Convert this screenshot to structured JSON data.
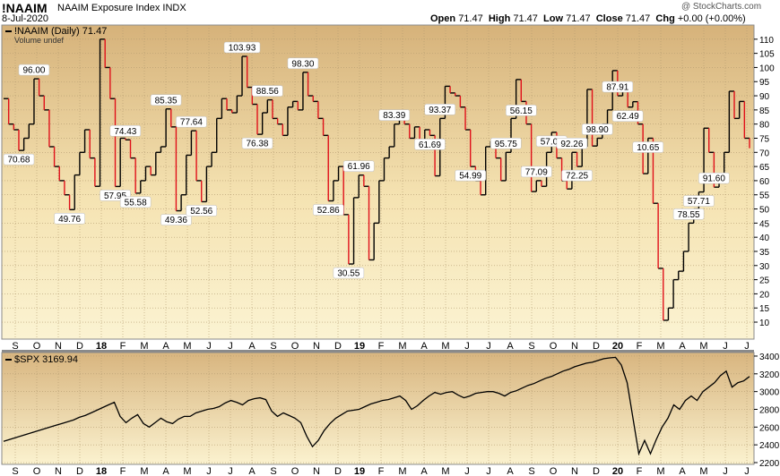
{
  "header": {
    "symbol": "!NAAIM",
    "name": "NAAIM Exposure Index  INDX",
    "watermark": "@ StockCharts.com",
    "date": "8-Jul-2020",
    "quote_label_open": "Open",
    "quote_open": "71.47",
    "quote_label_high": "High",
    "quote_high": "71.47",
    "quote_label_low": "Low",
    "quote_low": "71.47",
    "quote_label_close": "Close",
    "quote_close": "71.47",
    "quote_label_chg": "Chg",
    "quote_chg": "+0.00 (+0.00%)"
  },
  "colors": {
    "panel_top": "#d6b27a",
    "panel_mid": "#fbf2cf",
    "up_line": "#000000",
    "down_line": "#e0101a",
    "spx_line": "#000000"
  },
  "chart_data": [
    {
      "type": "line",
      "panel": "main",
      "legend_label": "!NAAIM (Daily) 71.47",
      "legend_sub": "Volume undef",
      "ylim": [
        4,
        115
      ],
      "y_ticks": [
        10,
        15,
        20,
        25,
        30,
        35,
        40,
        45,
        50,
        55,
        60,
        65,
        70,
        75,
        80,
        85,
        90,
        95,
        100,
        105,
        110
      ],
      "x_month_labels": [
        "S",
        "O",
        "N",
        "D",
        "18",
        "F",
        "M",
        "A",
        "M",
        "J",
        "J",
        "A",
        "S",
        "O",
        "N",
        "D",
        "19",
        "F",
        "M",
        "A",
        "M",
        "J",
        "J",
        "A",
        "S",
        "O",
        "N",
        "D",
        "20",
        "F",
        "M",
        "A",
        "M",
        "J",
        "J"
      ],
      "grid": true,
      "style": "step, up-moves black, down-moves red",
      "values": [
        89,
        80,
        78,
        70.68,
        75,
        80,
        96,
        90,
        85,
        72,
        65,
        60,
        55,
        49.76,
        62,
        70,
        78,
        68,
        58,
        110,
        100,
        89,
        57.95,
        75,
        74.43,
        68,
        55.58,
        60,
        65,
        62,
        70,
        72,
        85.35,
        79,
        49.36,
        55,
        69,
        77.64,
        60,
        52.56,
        65,
        70,
        82,
        89,
        85,
        84,
        90,
        103.93,
        93,
        87,
        76.38,
        84,
        88.56,
        82,
        80,
        76,
        86,
        88,
        85,
        98.3,
        90,
        88,
        82,
        76,
        52.86,
        60,
        65,
        48,
        30.55,
        54,
        61.96,
        58,
        32,
        45,
        60,
        68,
        72,
        80,
        83.39,
        80,
        75,
        79,
        72,
        78,
        76,
        61.69,
        82,
        93.37,
        91,
        90,
        86,
        78,
        65,
        60,
        54.99,
        72,
        74,
        68,
        60,
        70,
        82,
        95.75,
        88,
        80,
        56.15,
        60,
        58,
        70,
        77.09,
        68,
        60,
        57.08,
        70,
        65,
        72,
        92.26,
        72.25,
        75,
        80,
        85,
        98.9,
        90,
        93,
        86,
        87.91,
        80,
        62.49,
        75,
        52,
        29,
        10.65,
        15,
        25,
        28,
        35,
        45,
        50,
        56,
        78.55,
        70,
        57.71,
        60,
        70,
        91.6,
        82,
        88,
        75,
        71.47
      ],
      "annotations": [
        {
          "label": "96.00",
          "i": 6,
          "dir": "up"
        },
        {
          "label": "70.68",
          "i": 3,
          "dir": "down"
        },
        {
          "label": "49.76",
          "i": 13,
          "dir": "down"
        },
        {
          "label": "57.95",
          "i": 22,
          "dir": "down"
        },
        {
          "label": "74.43",
          "i": 24,
          "dir": "up"
        },
        {
          "label": "55.58",
          "i": 26,
          "dir": "down"
        },
        {
          "label": "85.35",
          "i": 32,
          "dir": "up"
        },
        {
          "label": "49.36",
          "i": 34,
          "dir": "down"
        },
        {
          "label": "77.64",
          "i": 37,
          "dir": "up"
        },
        {
          "label": "52.56",
          "i": 39,
          "dir": "down"
        },
        {
          "label": "103.93",
          "i": 47,
          "dir": "up"
        },
        {
          "label": "76.38",
          "i": 50,
          "dir": "down"
        },
        {
          "label": "88.56",
          "i": 52,
          "dir": "up"
        },
        {
          "label": "98.30",
          "i": 59,
          "dir": "up"
        },
        {
          "label": "52.86",
          "i": 64,
          "dir": "down"
        },
        {
          "label": "30.55",
          "i": 68,
          "dir": "down"
        },
        {
          "label": "61.96",
          "i": 70,
          "dir": "up"
        },
        {
          "label": "83.39",
          "i": 77,
          "dir": "up"
        },
        {
          "label": "61.69",
          "i": 84,
          "dir": "down"
        },
        {
          "label": "93.37",
          "i": 86,
          "dir": "up"
        },
        {
          "label": "54.99",
          "i": 92,
          "dir": "down"
        },
        {
          "label": "95.75",
          "i": 99,
          "dir": "up"
        },
        {
          "label": "56.15",
          "i": 102,
          "dir": "down"
        },
        {
          "label": "77.09",
          "i": 105,
          "dir": "up"
        },
        {
          "label": "57.08",
          "i": 108,
          "dir": "down"
        },
        {
          "label": "92.26",
          "i": 112,
          "dir": "up"
        },
        {
          "label": "72.25",
          "i": 113,
          "dir": "down"
        },
        {
          "label": "98.90",
          "i": 117,
          "dir": "up"
        },
        {
          "label": "87.91",
          "i": 121,
          "dir": "up"
        },
        {
          "label": "62.49",
          "i": 123,
          "dir": "down"
        },
        {
          "label": "10.65",
          "i": 127,
          "dir": "down"
        },
        {
          "label": "78.55",
          "i": 135,
          "dir": "up"
        },
        {
          "label": "57.71",
          "i": 137,
          "dir": "down"
        },
        {
          "label": "91.60",
          "i": 140,
          "dir": "up"
        }
      ]
    },
    {
      "type": "line",
      "panel": "lower",
      "legend_label": "$SPX 3169.94",
      "ylim": [
        2180,
        3440
      ],
      "y_ticks": [
        2200,
        2400,
        2600,
        2800,
        3000,
        3200,
        3400
      ],
      "x_month_labels": [
        "S",
        "O",
        "N",
        "D",
        "18",
        "F",
        "M",
        "A",
        "M",
        "J",
        "J",
        "A",
        "S",
        "O",
        "N",
        "D",
        "19",
        "F",
        "M",
        "A",
        "M",
        "J",
        "J",
        "A",
        "S",
        "O",
        "N",
        "D",
        "20",
        "F",
        "M",
        "A",
        "M",
        "J",
        "J"
      ],
      "grid": true,
      "values": [
        2440,
        2460,
        2480,
        2500,
        2520,
        2540,
        2560,
        2580,
        2600,
        2620,
        2640,
        2660,
        2680,
        2710,
        2730,
        2760,
        2790,
        2820,
        2850,
        2880,
        2720,
        2650,
        2700,
        2740,
        2640,
        2600,
        2650,
        2700,
        2660,
        2640,
        2690,
        2720,
        2720,
        2760,
        2780,
        2800,
        2810,
        2830,
        2870,
        2900,
        2880,
        2850,
        2900,
        2920,
        2930,
        2910,
        2780,
        2720,
        2760,
        2730,
        2700,
        2650,
        2500,
        2380,
        2450,
        2560,
        2640,
        2700,
        2740,
        2780,
        2790,
        2800,
        2830,
        2860,
        2880,
        2900,
        2910,
        2930,
        2950,
        2900,
        2800,
        2840,
        2900,
        2950,
        2990,
        2970,
        2990,
        3000,
        2960,
        2930,
        2950,
        2980,
        2990,
        3000,
        3000,
        2980,
        2950,
        2990,
        3010,
        3040,
        3070,
        3090,
        3120,
        3150,
        3170,
        3200,
        3230,
        3250,
        3280,
        3300,
        3320,
        3330,
        3350,
        3370,
        3380,
        3386,
        3300,
        3100,
        2700,
        2300,
        2450,
        2300,
        2460,
        2600,
        2700,
        2850,
        2800,
        2900,
        2950,
        2900,
        3000,
        3050,
        3100,
        3180,
        3230,
        3050,
        3100,
        3120,
        3170
      ]
    }
  ]
}
